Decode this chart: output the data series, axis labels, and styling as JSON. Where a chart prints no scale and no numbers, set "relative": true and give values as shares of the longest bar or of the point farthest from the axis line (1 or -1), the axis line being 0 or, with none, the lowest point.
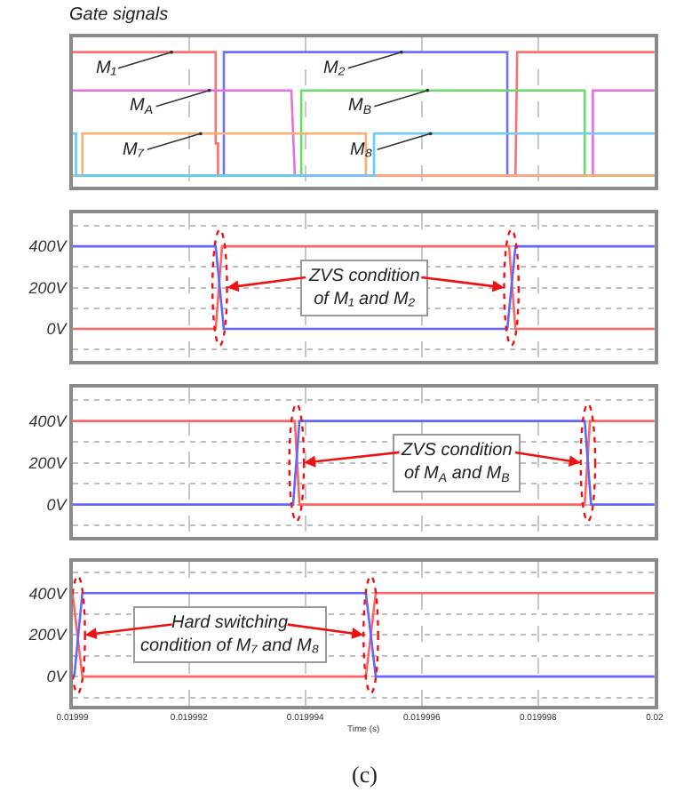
{
  "chart_data": [
    {
      "type": "line",
      "title": "Gate signals",
      "relative": true,
      "grid": "x",
      "tick_labels": false,
      "xlim": [
        0.01999,
        0.02
      ],
      "xticks": [
        0.01999,
        0.019992,
        0.019994,
        0.019996,
        0.019998,
        0.02
      ],
      "series": [
        {
          "name": "M₁",
          "color": "#ff6f6f",
          "x": [
            0.01999,
            0.01999246,
            0.01999246,
            0.0199925,
            0.0199925,
            0.01999761,
            0.01999764,
            0.02
          ],
          "values": [
            1,
            1,
            0.26,
            0.26,
            0,
            0,
            1,
            1
          ]
        },
        {
          "name": "M₂",
          "color": "#6f6fff",
          "x": [
            0.01999,
            0.0199926,
            0.0199926,
            0.01999747,
            0.01999747,
            0.02
          ],
          "values": [
            0,
            0,
            1,
            1,
            0,
            0
          ]
        },
        {
          "name": "M$_{A}$",
          "color": "#e36fe3",
          "x": [
            0.01999,
            0.01999376,
            0.01999382,
            0.01999894,
            0.01999894,
            0.02
          ],
          "values": [
            0.69,
            0.69,
            0,
            0,
            0.69,
            0.69
          ]
        },
        {
          "name": "M$_{B}$",
          "color": "#66dd66",
          "x": [
            0.01999,
            0.01999393,
            0.01999393,
            0.0199988,
            0.0199988,
            0.02
          ],
          "values": [
            0,
            0,
            0.69,
            0.69,
            0,
            0
          ]
        },
        {
          "name": "M₇",
          "color": "#ffb070",
          "x": [
            0.01999,
            0.01999017,
            0.01999017,
            0.01999504,
            0.01999504,
            0.02
          ],
          "values": [
            0,
            0,
            0.34,
            0.34,
            0,
            0
          ]
        },
        {
          "name": "M₈",
          "color": "#66ccff",
          "x": [
            0.01999,
            0.01999006,
            0.01999006,
            0.01999518,
            0.01999518,
            0.02
          ],
          "values": [
            0.34,
            0.34,
            0,
            0,
            0.34,
            0.34
          ]
        }
      ]
    },
    {
      "type": "line",
      "grid": true,
      "tick_labels": "y",
      "xlim": [
        0.01999,
        0.02
      ],
      "xticks": [
        0.01999,
        0.019992,
        0.019994,
        0.019996,
        0.019998,
        0.02
      ],
      "ylim": [
        -155,
        560
      ],
      "yticks": [
        {
          "value": -100,
          "label": null
        },
        {
          "value": 0,
          "label": "0V"
        },
        {
          "value": 100,
          "label": null
        },
        {
          "value": 200,
          "label": "200V"
        },
        {
          "value": 300,
          "label": null
        },
        {
          "value": 400,
          "label": "400V"
        },
        {
          "value": 500,
          "label": null
        }
      ],
      "annotations": [
        {
          "text": "ZVS condition\nof M₁ and M₂",
          "x": 0.01999253,
          "y": 200
        }
      ],
      "series": [
        {
          "color": "#ff6464",
          "x": [
            0.01999,
            0.01999246,
            0.01999257,
            0.0199975,
            0.01999761,
            0.02
          ],
          "values": [
            0,
            0,
            400,
            400,
            0,
            0
          ]
        },
        {
          "color": "#6464ff",
          "x": [
            0.01999,
            0.01999246,
            0.0199926,
            0.01999747,
            0.01999761,
            0.02
          ],
          "values": [
            400,
            400,
            0,
            0,
            400,
            400
          ]
        }
      ]
    },
    {
      "type": "line",
      "grid": true,
      "tick_labels": "y",
      "xlim": [
        0.01999,
        0.02
      ],
      "xticks": [
        0.01999,
        0.019992,
        0.019994,
        0.019996,
        0.019998,
        0.02
      ],
      "ylim": [
        -155,
        560
      ],
      "yticks": [
        {
          "value": -100,
          "label": null
        },
        {
          "value": 0,
          "label": "0V"
        },
        {
          "value": 100,
          "label": null
        },
        {
          "value": 200,
          "label": "200V"
        },
        {
          "value": 300,
          "label": null
        },
        {
          "value": 400,
          "label": "400V"
        },
        {
          "value": 500,
          "label": null
        }
      ],
      "annotations": [
        {
          "text": "ZVS condition\nof M$_{A}$ and M$_{B}$",
          "x": 0.01999385,
          "y": 200
        }
      ],
      "series": [
        {
          "color": "#ff6464",
          "x": [
            0.01999,
            0.01999382,
            0.0199939,
            0.0199988,
            0.01999889,
            0.02
          ],
          "values": [
            400,
            400,
            0,
            0,
            400,
            400
          ]
        },
        {
          "color": "#6464ff",
          "x": [
            0.01999,
            0.01999379,
            0.0199939,
            0.0199988,
            0.01999891,
            0.02
          ],
          "values": [
            0,
            0,
            400,
            400,
            0,
            0
          ]
        }
      ]
    },
    {
      "type": "line",
      "grid": true,
      "xlabel": "Time (s)",
      "xlim": [
        0.01999,
        0.02
      ],
      "xticks": [
        0.01999,
        0.019992,
        0.019994,
        0.019996,
        0.019998,
        0.02
      ],
      "ylim": [
        -140,
        550
      ],
      "yticks": [
        {
          "value": -100,
          "label": null
        },
        {
          "value": 0,
          "label": "0V"
        },
        {
          "value": 100,
          "label": null
        },
        {
          "value": 200,
          "label": "200V"
        },
        {
          "value": 300,
          "label": null
        },
        {
          "value": 400,
          "label": "400V"
        },
        {
          "value": 500,
          "label": null
        }
      ],
      "annotations": [
        {
          "text": "Hard switching\ncondition of M₇ and M₈",
          "x": 0.01999009,
          "y": 200
        },
        "(c)"
      ],
      "series": [
        {
          "color": "#ff6464",
          "x": [
            0.01999,
            0.01999017,
            0.01999504,
            0.01999521,
            0.02
          ],
          "values": [
            400,
            0,
            0,
            400,
            400
          ]
        },
        {
          "color": "#6464ff",
          "x": [
            0.01999,
            0.01999003,
            0.01999017,
            0.01999504,
            0.01999521,
            0.02
          ],
          "values": [
            0,
            0,
            400,
            400,
            0,
            0
          ]
        }
      ]
    }
  ]
}
